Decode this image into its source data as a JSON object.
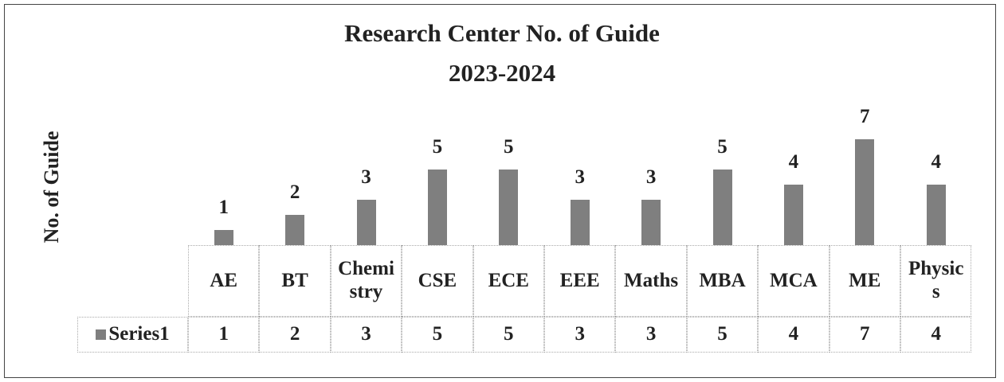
{
  "chart_data": {
    "type": "bar",
    "title": "Research Center No. of Guide",
    "subtitle": "2023-2024",
    "y_label": "No. of Guide",
    "categories": [
      "AE",
      "BT",
      "Chemistry",
      "CSE",
      "ECE",
      "EEE",
      "Maths",
      "MBA",
      "MCA",
      "ME",
      "Physics"
    ],
    "series": [
      {
        "name": "Series1",
        "color": "#7f7f7f",
        "values": [
          1,
          2,
          3,
          5,
          5,
          3,
          3,
          5,
          4,
          7,
          4
        ]
      }
    ]
  }
}
